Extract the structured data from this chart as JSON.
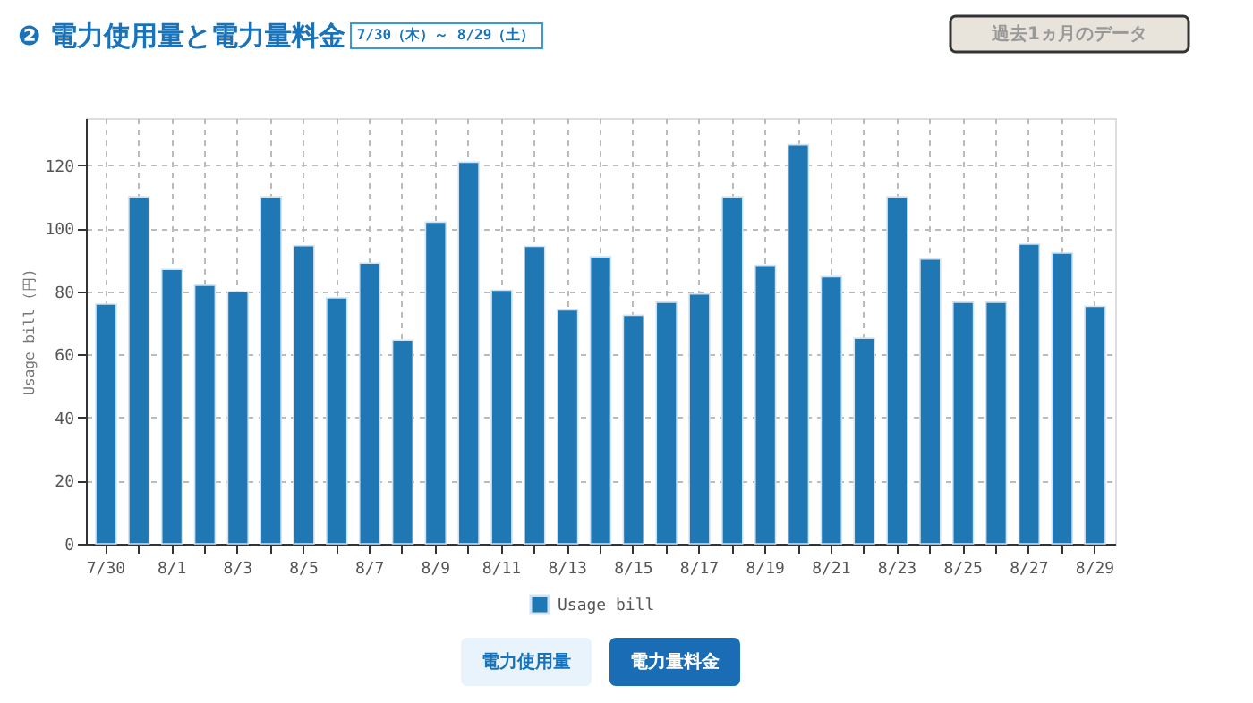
{
  "chart_data": {
    "type": "bar",
    "title": "❷ 電力使用量と電力量料金",
    "subtitle": "7/30（木）～ 8/29（土）",
    "ylabel": "Usage bill (円)",
    "categories": [
      "7/30",
      null,
      "8/1",
      null,
      "8/3",
      null,
      "8/5",
      null,
      "8/7",
      null,
      "8/9",
      null,
      "8/11",
      null,
      "8/13",
      null,
      "8/15",
      null,
      "8/17",
      null,
      "8/19",
      null,
      "8/21",
      null,
      "8/23",
      null,
      "8/25",
      null,
      "8/27",
      null,
      "8/29"
    ],
    "series": [
      {
        "name": "Usage bill",
        "color": "#1f77b4",
        "values": [
          76,
          110,
          87,
          82,
          80,
          110,
          94.5,
          78,
          89,
          64.6,
          102,
          121,
          80.4,
          94.3,
          74.2,
          91,
          72.5,
          76.6,
          79.2,
          110,
          88.3,
          126.6,
          84.7,
          65.2,
          110,
          90.3,
          76.6,
          76.6,
          95,
          92.2,
          75.3
        ]
      }
    ],
    "ylim": [
      0,
      135
    ],
    "yticks": [
      0,
      20,
      40,
      60,
      80,
      100,
      120
    ],
    "grid": true,
    "legend": "bottom",
    "annotations": [
      "過去1ヵ月のデータ",
      "電力使用量",
      "電力量料金"
    ]
  }
}
